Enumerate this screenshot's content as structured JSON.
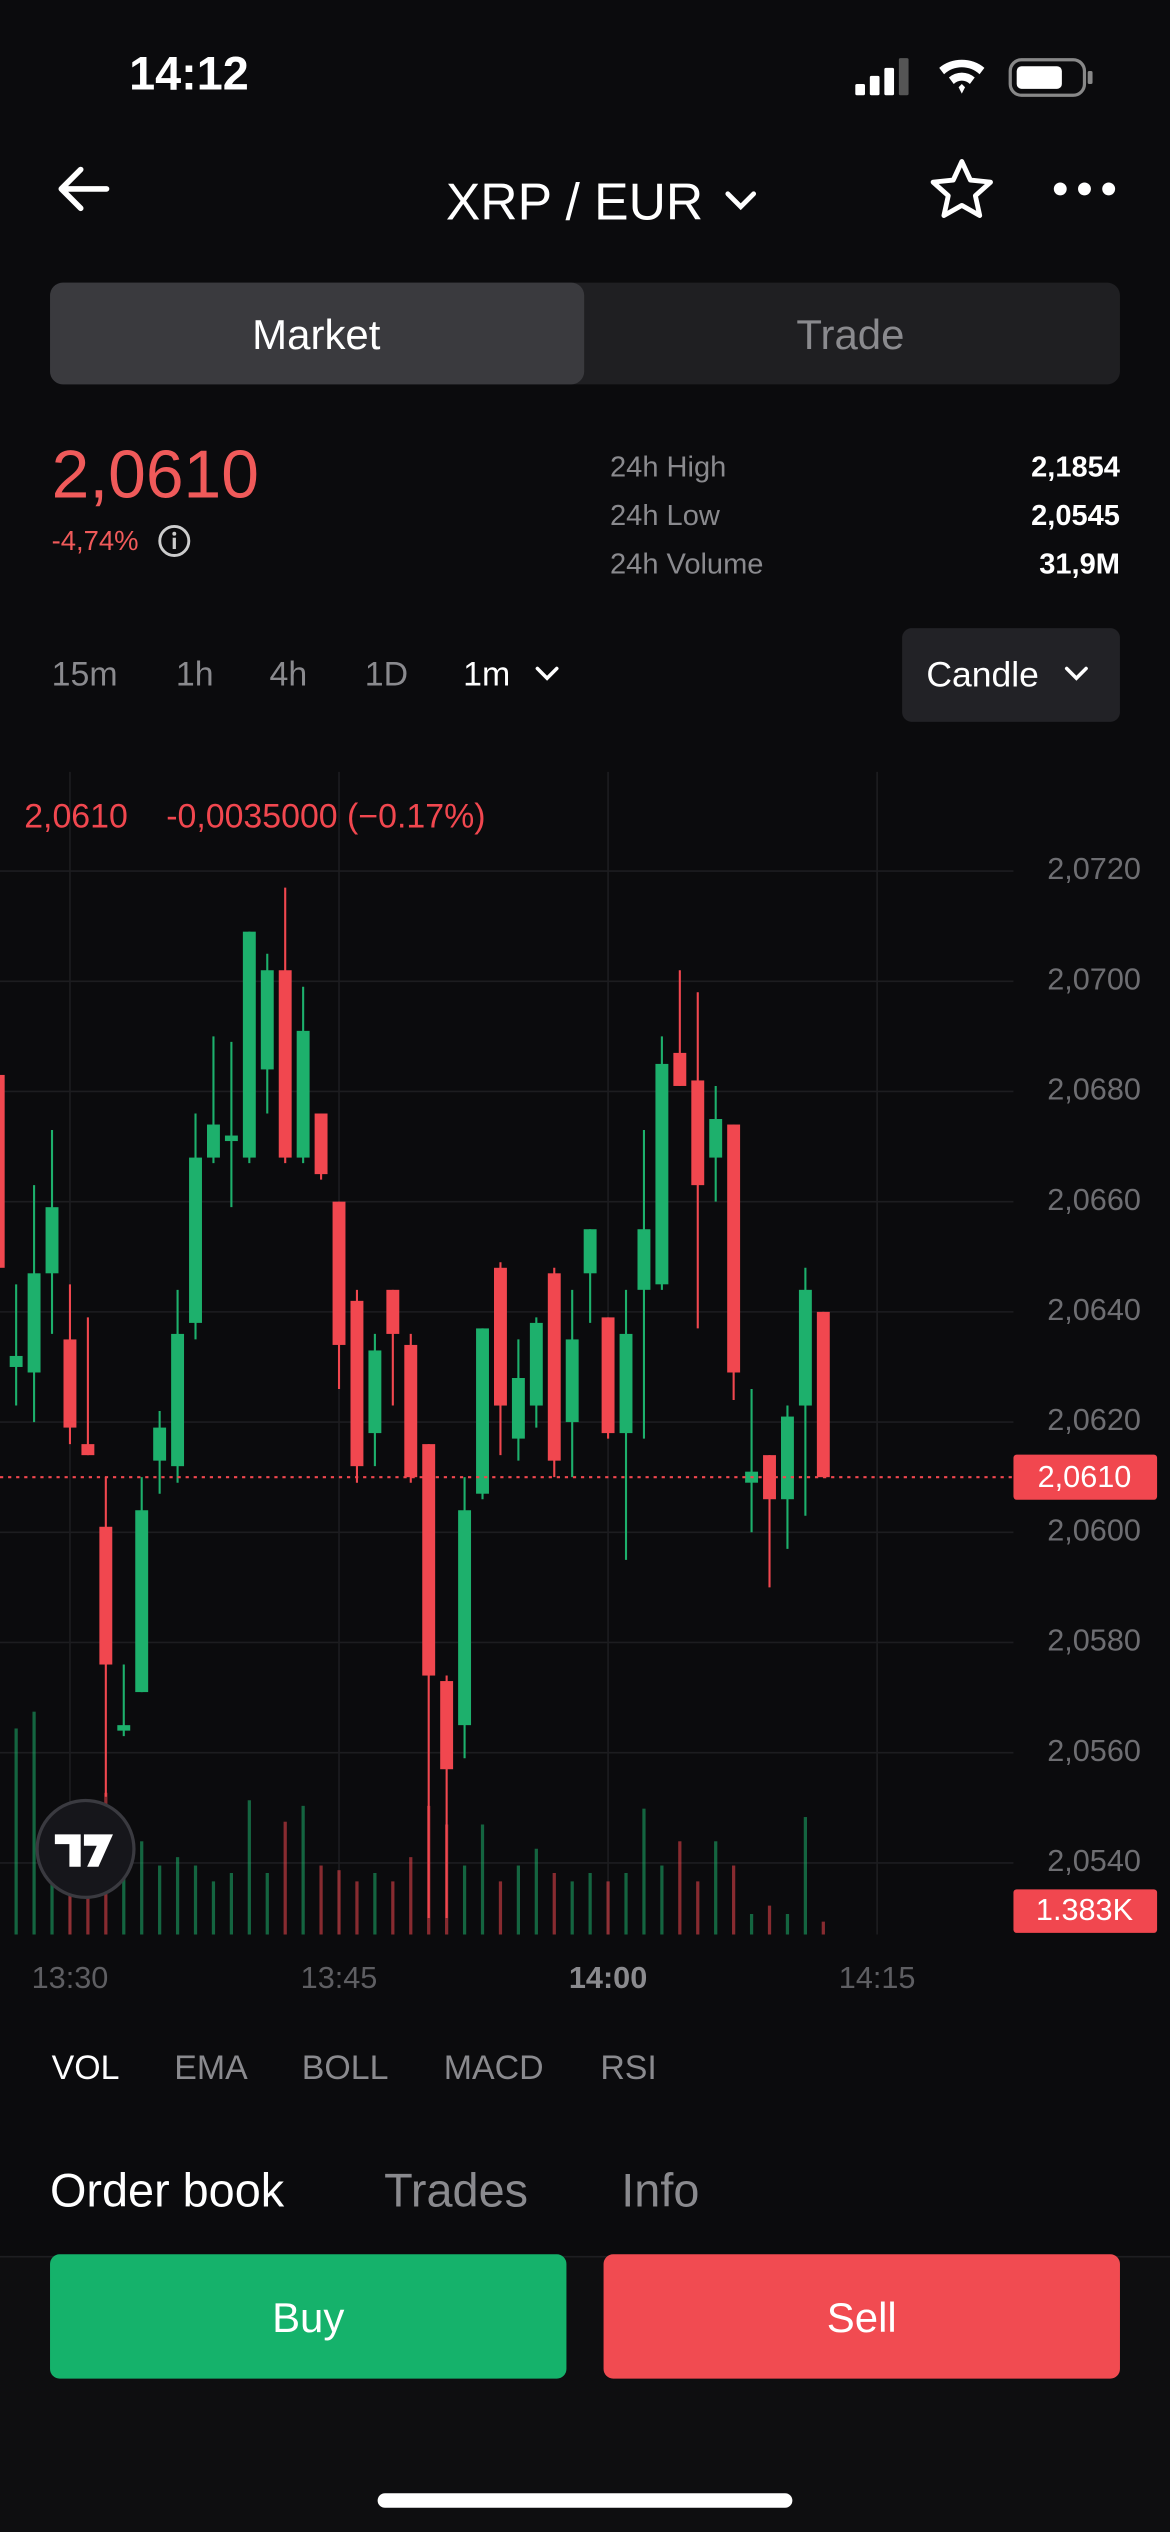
{
  "status_bar": {
    "time": "14:12"
  },
  "header": {
    "title": "XRP / EUR"
  },
  "tabs": [
    "Market",
    "Trade"
  ],
  "price": {
    "last": "2,0610",
    "change": "-4,74%"
  },
  "stats": [
    {
      "label": "24h High",
      "value": "2,1854"
    },
    {
      "label": "24h Low",
      "value": "2,0545"
    },
    {
      "label": "24h Volume",
      "value": "31,9M"
    }
  ],
  "intervals": [
    "15m",
    "1h",
    "4h",
    "1D",
    "1m"
  ],
  "chart_style": "Candle",
  "indicators": [
    "VOL",
    "EMA",
    "BOLL",
    "MACD",
    "RSI"
  ],
  "sections": [
    "Order book",
    "Trades",
    "Info"
  ],
  "actions": [
    "Buy",
    "Sell"
  ],
  "chart_data": {
    "type": "candlestick",
    "legend_close": "2,0610",
    "legend_change": "-0,0035000 (−0.17%)",
    "x": [
      806,
      807,
      808,
      809,
      810,
      811,
      812,
      813,
      814,
      815,
      816,
      817,
      818,
      819,
      820,
      821,
      822,
      823,
      824,
      825,
      826,
      827,
      828,
      829,
      830,
      831,
      832,
      833,
      834,
      835,
      836,
      837,
      838,
      839,
      840,
      841,
      842,
      843,
      844,
      845,
      846,
      847,
      848,
      849,
      850,
      851,
      852
    ],
    "open": [
      2.0683,
      2.063,
      2.0629,
      2.0647,
      2.0635,
      2.0616,
      2.0601,
      2.0564,
      2.0571,
      2.0613,
      2.0612,
      2.0638,
      2.0668,
      2.0671,
      2.0668,
      2.0684,
      2.0702,
      2.0668,
      2.0676,
      2.066,
      2.0642,
      2.0618,
      2.0644,
      2.0634,
      2.0616,
      2.0573,
      2.0565,
      2.0607,
      2.0648,
      2.0617,
      2.0623,
      2.0647,
      2.062,
      2.0647,
      2.0639,
      2.0618,
      2.0644,
      2.0645,
      2.0687,
      2.0682,
      2.0668,
      2.0674,
      2.0609,
      2.0614,
      2.0606,
      2.0623,
      2.064
    ],
    "high": [
      2.0685,
      2.0645,
      2.0663,
      2.0673,
      2.0645,
      2.0639,
      2.061,
      2.0576,
      2.061,
      2.0622,
      2.0644,
      2.0676,
      2.069,
      2.0689,
      2.0709,
      2.0705,
      2.0717,
      2.0699,
      2.0676,
      2.066,
      2.0644,
      2.0636,
      2.0644,
      2.0636,
      2.0616,
      2.0574,
      2.061,
      2.0637,
      2.0649,
      2.0635,
      2.0639,
      2.0648,
      2.0644,
      2.0655,
      2.0639,
      2.0644,
      2.0673,
      2.069,
      2.0702,
      2.0698,
      2.0681,
      2.0674,
      2.0626,
      2.0614,
      2.0623,
      2.0648,
      2.064
    ],
    "low": [
      2.064,
      2.0623,
      2.062,
      2.0636,
      2.0616,
      2.0614,
      2.0552,
      2.0563,
      2.0571,
      2.0607,
      2.0609,
      2.0635,
      2.0667,
      2.0659,
      2.0667,
      2.0676,
      2.0667,
      2.0667,
      2.0664,
      2.0626,
      2.0609,
      2.0612,
      2.0623,
      2.0609,
      2.053,
      2.053,
      2.0559,
      2.0606,
      2.0614,
      2.0613,
      2.0619,
      2.061,
      2.061,
      2.0638,
      2.0617,
      2.0595,
      2.0617,
      2.0644,
      2.0681,
      2.0637,
      2.066,
      2.0624,
      2.06,
      2.059,
      2.0597,
      2.0603,
      2.061
    ],
    "close": [
      2.0648,
      2.0632,
      2.0647,
      2.0659,
      2.0619,
      2.0614,
      2.0576,
      2.0565,
      2.0604,
      2.0619,
      2.0636,
      2.0668,
      2.0674,
      2.0672,
      2.0709,
      2.0702,
      2.0668,
      2.0691,
      2.0665,
      2.0634,
      2.0612,
      2.0633,
      2.0636,
      2.061,
      2.0574,
      2.0557,
      2.0604,
      2.0637,
      2.0623,
      2.0628,
      2.0638,
      2.0613,
      2.0635,
      2.0655,
      2.0618,
      2.0636,
      2.0655,
      2.0685,
      2.0681,
      2.0663,
      2.0675,
      2.0629,
      2.0611,
      2.0606,
      2.0621,
      2.0644,
      2.061
    ],
    "volume": [
      20000,
      22100,
      23900,
      10900,
      8300,
      14400,
      15200,
      10900,
      10000,
      7400,
      8300,
      7400,
      5700,
      6600,
      14400,
      6600,
      12100,
      13800,
      7400,
      6900,
      5700,
      6600,
      5700,
      8300,
      13800,
      11800,
      7400,
      11800,
      5700,
      7400,
      9200,
      6600,
      5700,
      6600,
      5700,
      6600,
      13500,
      7400,
      10000,
      5700,
      10000,
      7400,
      2200,
      3100,
      2200,
      12600,
      1383
    ],
    "up_color": "#1db06c",
    "down_color": "#f1474f",
    "xlim": [
      806.1,
      862.6
    ],
    "ylim": [
      2.0527,
      2.0738
    ],
    "yticks": [
      {
        "value": 2.072,
        "label": "2,0720"
      },
      {
        "value": 2.07,
        "label": "2,0700"
      },
      {
        "value": 2.068,
        "label": "2,0680"
      },
      {
        "value": 2.066,
        "label": "2,0660"
      },
      {
        "value": 2.064,
        "label": "2,0640"
      },
      {
        "value": 2.062,
        "label": "2,0620"
      },
      {
        "value": 2.06,
        "label": "2,0600"
      },
      {
        "value": 2.058,
        "label": "2,0580"
      },
      {
        "value": 2.056,
        "label": "2,0560"
      },
      {
        "value": 2.054,
        "label": "2,0540"
      }
    ],
    "xticks": [
      {
        "value": 810,
        "label": "13:30"
      },
      {
        "value": 825,
        "label": "13:45"
      },
      {
        "value": 840,
        "label": "14:00"
      },
      {
        "value": 855,
        "label": "14:15"
      }
    ],
    "grid": true,
    "current_price": {
      "value": 2.061,
      "label": "2,0610"
    },
    "current_volume": {
      "value": 1383,
      "label": "1.383K"
    }
  }
}
